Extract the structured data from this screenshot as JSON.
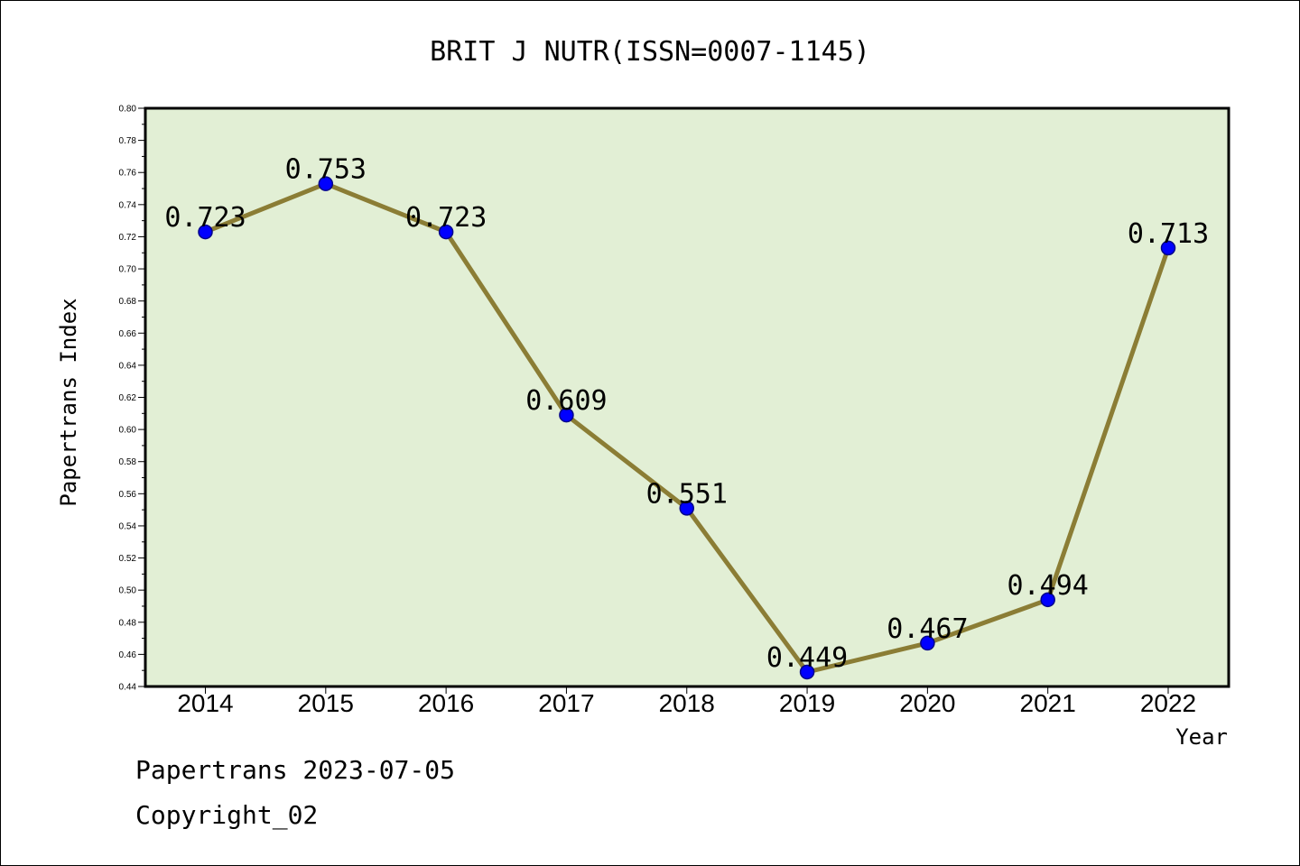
{
  "chart_data": {
    "type": "line",
    "title": "BRIT J NUTR(ISSN=0007-1145)",
    "xlabel": "Year",
    "ylabel": "Papertrans Index",
    "categories": [
      "2014",
      "2015",
      "2016",
      "2017",
      "2018",
      "2019",
      "2020",
      "2021",
      "2022"
    ],
    "values": [
      0.723,
      0.753,
      0.723,
      0.609,
      0.551,
      0.449,
      0.467,
      0.494,
      0.713
    ],
    "data_labels": [
      "0.723",
      "0.753",
      "0.723",
      "0.609",
      "0.551",
      "0.449",
      "0.467",
      "0.494",
      "0.713"
    ],
    "ylim": [
      0.44,
      0.8
    ],
    "yticks": [
      "0.44",
      "0.46",
      "0.48",
      "0.50",
      "0.52",
      "0.54",
      "0.56",
      "0.58",
      "0.60",
      "0.62",
      "0.64",
      "0.66",
      "0.68",
      "0.70",
      "0.72",
      "0.74",
      "0.76",
      "0.78",
      "0.80"
    ],
    "grid": false,
    "colors": {
      "plot_background": "#e2efd5",
      "line": "#8b7d35",
      "marker_fill": "#0000ff",
      "marker_stroke": "#00008b"
    }
  },
  "footer": {
    "line1": "Papertrans 2023-07-05",
    "line2": "Copyright_02"
  }
}
